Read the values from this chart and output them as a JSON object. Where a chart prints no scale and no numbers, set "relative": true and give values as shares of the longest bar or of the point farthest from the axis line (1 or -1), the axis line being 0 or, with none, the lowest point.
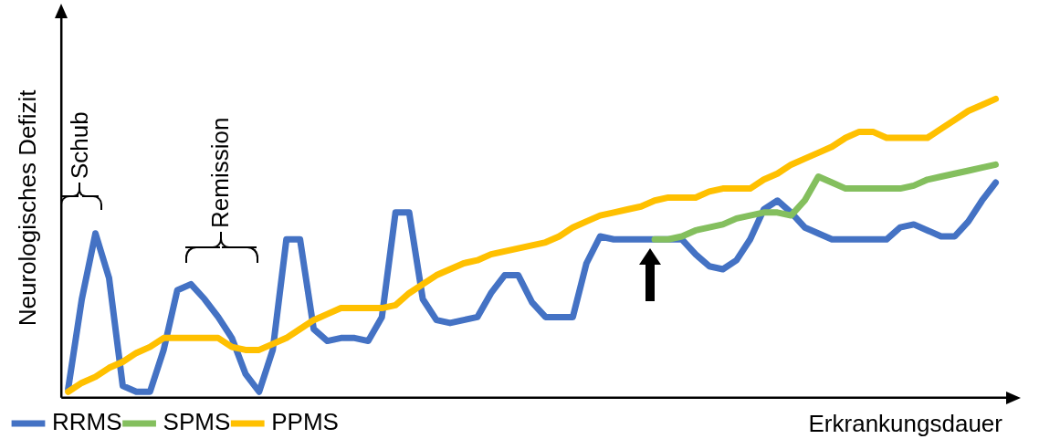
{
  "chart_data": {
    "type": "line",
    "relative": true,
    "xlabel": "Erkrankungsdauer",
    "ylabel": "Neurologisches Defizit",
    "legend": "bottom left",
    "grid": false,
    "marker": "none",
    "tick_labels": false,
    "annotations": [
      "Schub",
      "Remission"
    ],
    "categories": [
      null,
      null,
      null,
      null,
      null,
      null,
      null,
      null,
      null,
      null,
      null,
      null,
      null,
      null,
      null,
      null,
      null,
      null,
      null,
      null,
      null,
      null,
      null,
      null,
      null,
      null,
      null,
      null,
      null,
      null,
      null,
      null,
      null,
      null,
      null,
      null,
      null,
      null,
      null,
      null,
      null,
      null,
      null,
      null,
      null,
      null,
      null,
      null,
      null,
      null,
      null,
      null,
      null,
      null,
      null,
      null,
      null,
      null,
      null,
      null,
      null,
      null,
      null,
      null,
      null,
      null,
      null,
      null,
      null
    ],
    "series": [
      {
        "name": "RRMS",
        "color": "#4472c4",
        "values": [
          0.03,
          0.33,
          0.55,
          0.4,
          0.04,
          0.02,
          0.02,
          0.16,
          0.36,
          0.38,
          0.33,
          0.27,
          0.2,
          0.08,
          0.02,
          0.16,
          0.53,
          0.53,
          0.23,
          0.19,
          0.2,
          0.2,
          0.19,
          0.27,
          0.62,
          0.62,
          0.33,
          0.26,
          0.25,
          0.26,
          0.27,
          0.35,
          0.41,
          0.41,
          0.32,
          0.27,
          0.27,
          0.27,
          0.45,
          0.54,
          0.53,
          0.53,
          0.53,
          0.53,
          0.53,
          0.53,
          0.48,
          0.44,
          0.43,
          0.46,
          0.53,
          0.63,
          0.66,
          0.62,
          0.57,
          0.55,
          0.53,
          0.53,
          0.53,
          0.53,
          0.53,
          0.57,
          0.58,
          0.56,
          0.54,
          0.54,
          0.59,
          0.66,
          0.72
        ]
      },
      {
        "name": "SPMS",
        "color": "#84bf5e",
        "values": [
          null,
          null,
          null,
          null,
          null,
          null,
          null,
          null,
          null,
          null,
          null,
          null,
          null,
          null,
          null,
          null,
          null,
          null,
          null,
          null,
          null,
          null,
          null,
          null,
          null,
          null,
          null,
          null,
          null,
          null,
          null,
          null,
          null,
          null,
          null,
          null,
          null,
          null,
          null,
          null,
          null,
          null,
          null,
          0.53,
          0.53,
          0.54,
          0.56,
          0.57,
          0.58,
          0.6,
          0.61,
          0.62,
          0.62,
          0.61,
          0.66,
          0.74,
          0.72,
          0.7,
          0.7,
          0.7,
          0.7,
          0.7,
          0.71,
          0.73,
          0.74,
          0.75,
          0.76,
          0.77,
          0.78
        ]
      },
      {
        "name": "PPMS",
        "color": "#ffc000",
        "values": [
          0.02,
          0.05,
          0.07,
          0.1,
          0.12,
          0.15,
          0.17,
          0.2,
          0.2,
          0.2,
          0.2,
          0.2,
          0.17,
          0.16,
          0.16,
          0.18,
          0.2,
          0.23,
          0.26,
          0.28,
          0.3,
          0.3,
          0.3,
          0.3,
          0.31,
          0.35,
          0.38,
          0.41,
          0.43,
          0.45,
          0.46,
          0.48,
          0.49,
          0.5,
          0.51,
          0.52,
          0.54,
          0.57,
          0.59,
          0.61,
          0.62,
          0.63,
          0.64,
          0.66,
          0.67,
          0.67,
          0.67,
          0.69,
          0.7,
          0.7,
          0.7,
          0.73,
          0.75,
          0.78,
          0.8,
          0.82,
          0.84,
          0.87,
          0.89,
          0.89,
          0.87,
          0.87,
          0.87,
          0.87,
          0.9,
          0.93,
          0.96,
          0.98,
          1
        ]
      }
    ]
  }
}
